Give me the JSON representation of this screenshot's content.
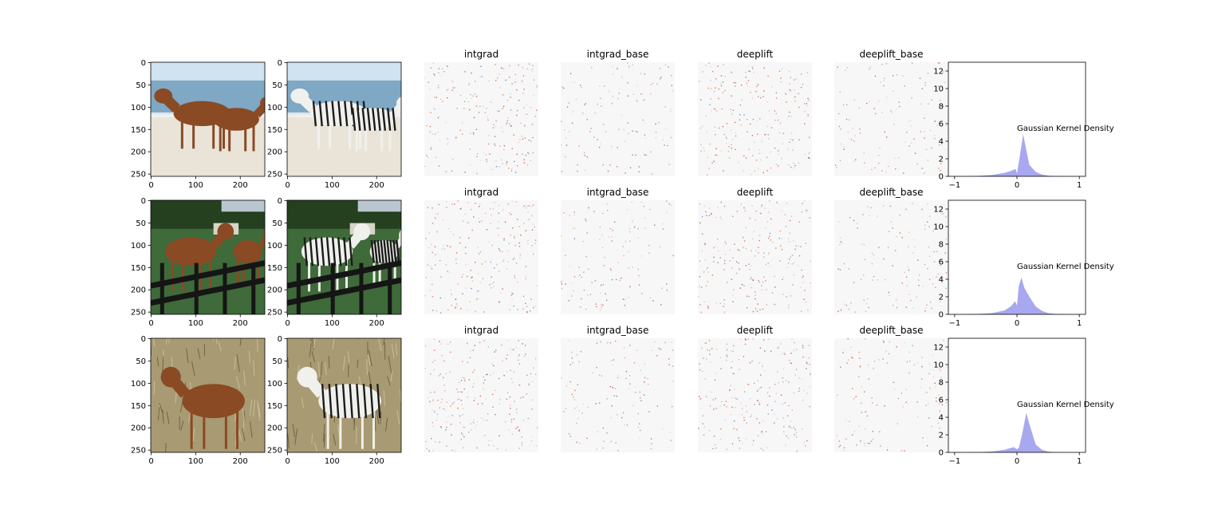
{
  "colors": {
    "kde_fill": "#a8a8f0",
    "attribution_positive": "#c8583a",
    "attribution_negative": "#5a78b8",
    "sky": "#cfe4f0",
    "sand": "#eae4d8",
    "horse_brown": "#8a4a24",
    "zebra_stripe": "#1c1c1c",
    "grass": "#3f6a3a",
    "dry_grass": "#a89a72",
    "fence": "#151515"
  },
  "image_axes": {
    "y_ticks": [
      "0",
      "50",
      "100",
      "150",
      "200",
      "250"
    ],
    "x_ticks": [
      "0",
      "100",
      "200"
    ]
  },
  "rows": [
    {
      "input_image": "horses-on-beach",
      "output_image": "zebras-on-beach",
      "titles": [
        "intgrad",
        "intgrad_base",
        "deeplift",
        "deeplift_base"
      ]
    },
    {
      "input_image": "horses-at-fence",
      "output_image": "zebras-at-fence",
      "titles": [
        "intgrad",
        "intgrad_base",
        "deeplift",
        "deeplift_base"
      ]
    },
    {
      "input_image": "horse-in-dry-grass",
      "output_image": "zebra-in-dry-grass",
      "titles": [
        "intgrad",
        "intgrad_base",
        "deeplift",
        "deeplift_base"
      ]
    }
  ],
  "chart_data": [
    {
      "type": "area",
      "annotation": "Gaussian Kernel Density",
      "xlim": [
        -1.1,
        1.1
      ],
      "ylim": [
        0,
        13
      ],
      "x_ticks": [
        -1,
        0,
        1
      ],
      "y_ticks": [
        0,
        2,
        4,
        6,
        8,
        10,
        12
      ],
      "x": [
        -1.0,
        -0.8,
        -0.6,
        -0.4,
        -0.2,
        -0.1,
        -0.02,
        0.0,
        0.05,
        0.1,
        0.15,
        0.2,
        0.3,
        0.4,
        0.5,
        0.6,
        0.8,
        1.0
      ],
      "y": [
        0,
        0.01,
        0.05,
        0.15,
        0.4,
        0.6,
        0.85,
        0.3,
        2.5,
        4.8,
        3.0,
        1.3,
        0.5,
        0.2,
        0.08,
        0.03,
        0,
        0
      ]
    },
    {
      "type": "area",
      "annotation": "Gaussian Kernel Density",
      "xlim": [
        -1.1,
        1.1
      ],
      "ylim": [
        0,
        13
      ],
      "x_ticks": [
        -1,
        0,
        1
      ],
      "y_ticks": [
        0,
        2,
        4,
        6,
        8,
        10,
        12
      ],
      "x": [
        -1.0,
        -0.8,
        -0.6,
        -0.4,
        -0.2,
        -0.1,
        -0.03,
        0.0,
        0.03,
        0.07,
        0.12,
        0.2,
        0.3,
        0.4,
        0.5,
        0.6,
        0.8,
        1.0
      ],
      "y": [
        0,
        0.01,
        0.05,
        0.15,
        0.45,
        0.9,
        1.5,
        1.0,
        3.2,
        4.2,
        3.0,
        2.0,
        0.9,
        0.4,
        0.15,
        0.05,
        0,
        0
      ]
    },
    {
      "type": "area",
      "annotation": "Gaussian Kernel Density",
      "xlim": [
        -1.1,
        1.1
      ],
      "ylim": [
        0,
        13
      ],
      "x_ticks": [
        -1,
        0,
        1
      ],
      "y_ticks": [
        0,
        2,
        4,
        6,
        8,
        10,
        12
      ],
      "x": [
        -1.0,
        -0.8,
        -0.6,
        -0.4,
        -0.2,
        -0.05,
        0.0,
        0.03,
        0.08,
        0.15,
        0.2,
        0.3,
        0.4,
        0.5,
        0.6,
        0.8,
        1.0
      ],
      "y": [
        0,
        0.01,
        0.04,
        0.1,
        0.3,
        0.6,
        0.35,
        0.5,
        2.0,
        4.5,
        3.2,
        0.9,
        0.3,
        0.1,
        0.03,
        0,
        0
      ]
    }
  ]
}
